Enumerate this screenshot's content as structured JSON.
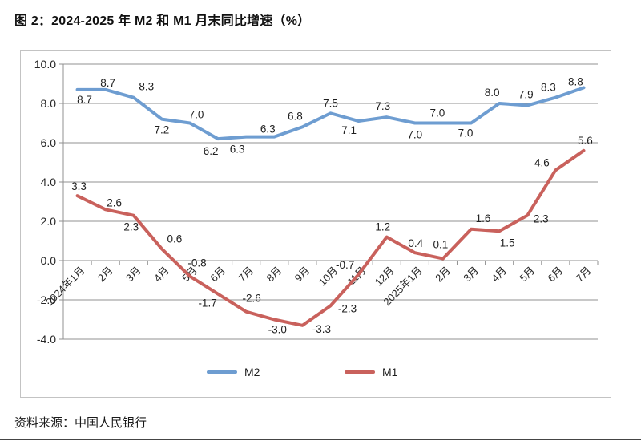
{
  "title": "图 2：2024-2025 年 M2 和 M1 月末同比增速（%）",
  "source_note": "资料来源：中国人民银行",
  "legend": {
    "m2_label": "M2",
    "m1_label": "M1"
  },
  "colors": {
    "m2_line": "#6e9dd1",
    "m1_line": "#c9615c",
    "grid": "#909090",
    "axis_text": "#262626",
    "data_label": "#1f1f1f",
    "frame_border": "#c3c3c3",
    "bottom_rule": "#454545"
  },
  "chart_data": {
    "type": "line",
    "title": "图 2：2024-2025 年 M2 和 M1 月末同比增速（%）",
    "categories": [
      "2024年1月",
      "2月",
      "3月",
      "4月",
      "5月",
      "6月",
      "7月",
      "8月",
      "9月",
      "10月",
      "11月",
      "12月",
      "2025年1月",
      "2月",
      "3月",
      "4月",
      "5月",
      "6月",
      "7月"
    ],
    "series": [
      {
        "name": "M2",
        "color": "#6e9dd1",
        "values": [
          8.7,
          8.7,
          8.3,
          7.2,
          7.0,
          6.2,
          6.3,
          6.3,
          6.8,
          7.5,
          7.1,
          7.3,
          7.0,
          7.0,
          7.0,
          8.0,
          7.9,
          8.3,
          8.8
        ]
      },
      {
        "name": "M1",
        "color": "#c9615c",
        "values": [
          3.3,
          2.6,
          2.3,
          0.6,
          -0.8,
          -1.7,
          -2.6,
          -3.0,
          -3.3,
          -2.3,
          -0.7,
          1.2,
          0.4,
          0.1,
          1.6,
          1.5,
          2.3,
          4.6,
          5.6
        ]
      }
    ],
    "ylim": [
      -4,
      10
    ],
    "ytick_step": 2,
    "ytick_labels": [
      "10.0",
      "8.0",
      "6.0",
      "4.0",
      "2.0",
      "0.0",
      "-2.0",
      "-4.0"
    ],
    "grid": "horizontal",
    "x_labels_rotated_deg": -45,
    "data_labels_shown": true,
    "legend_position": "bottom"
  }
}
